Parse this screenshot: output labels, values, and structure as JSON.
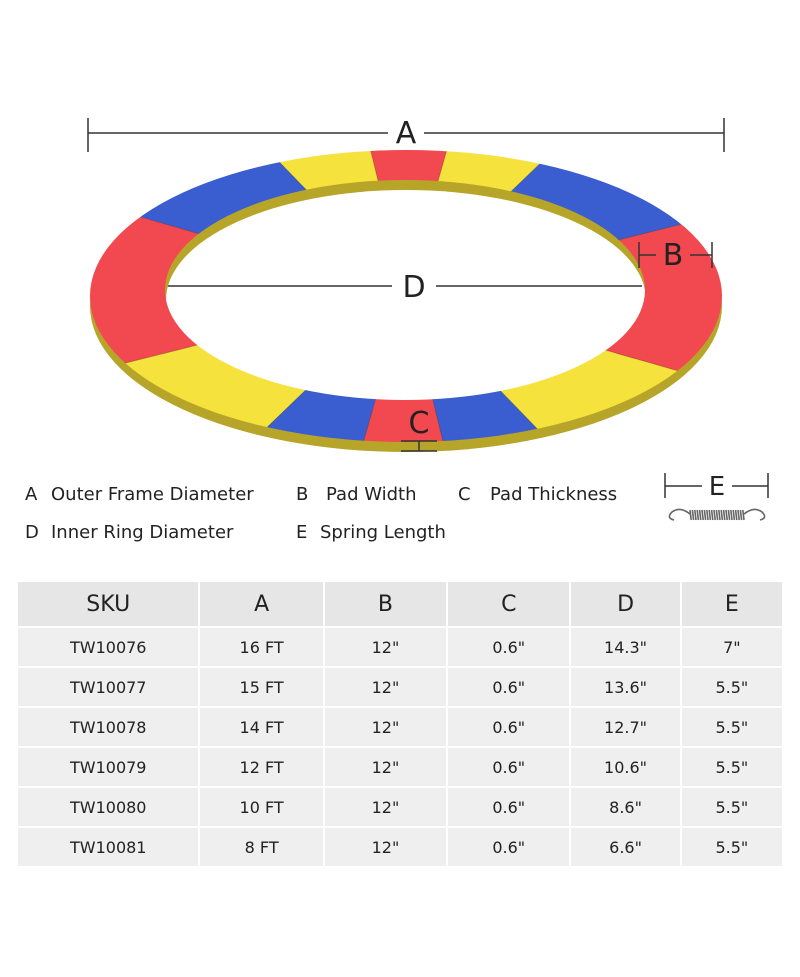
{
  "diagram": {
    "labels": {
      "a": "A",
      "b": "B",
      "c": "C",
      "d": "D",
      "e": "E"
    },
    "pad_colors": [
      "#f2484f",
      "#f5e23d",
      "#3a5ed0",
      "#f2484f",
      "#f5e23d",
      "#3a5ed0",
      "#f2484f",
      "#3a5ed0",
      "#f5e23d",
      "#f2484f",
      "#3a5ed0",
      "#f5e23d"
    ]
  },
  "legend": [
    {
      "key": "A",
      "label": "Outer Frame Diameter"
    },
    {
      "key": "B",
      "label": "Pad Width"
    },
    {
      "key": "C",
      "label": "Pad Thickness"
    },
    {
      "key": "D",
      "label": "Inner Ring Diameter"
    },
    {
      "key": "E",
      "label": "Spring Length"
    }
  ],
  "table": {
    "headers": [
      "SKU",
      "A",
      "B",
      "C",
      "D",
      "E"
    ],
    "rows": [
      [
        "TW10076",
        "16 FT",
        "12\"",
        "0.6\"",
        "14.3\"",
        "7\""
      ],
      [
        "TW10077",
        "15 FT",
        "12\"",
        "0.6\"",
        "13.6\"",
        "5.5\""
      ],
      [
        "TW10078",
        "14 FT",
        "12\"",
        "0.6\"",
        "12.7\"",
        "5.5\""
      ],
      [
        "TW10079",
        "12 FT",
        "12\"",
        "0.6\"",
        "10.6\"",
        "5.5\""
      ],
      [
        "TW10080",
        "10 FT",
        "12\"",
        "0.6\"",
        "8.6\"",
        "5.5\""
      ],
      [
        "TW10081",
        "8 FT",
        "12\"",
        "0.6\"",
        "6.6\"",
        "5.5\""
      ]
    ]
  }
}
